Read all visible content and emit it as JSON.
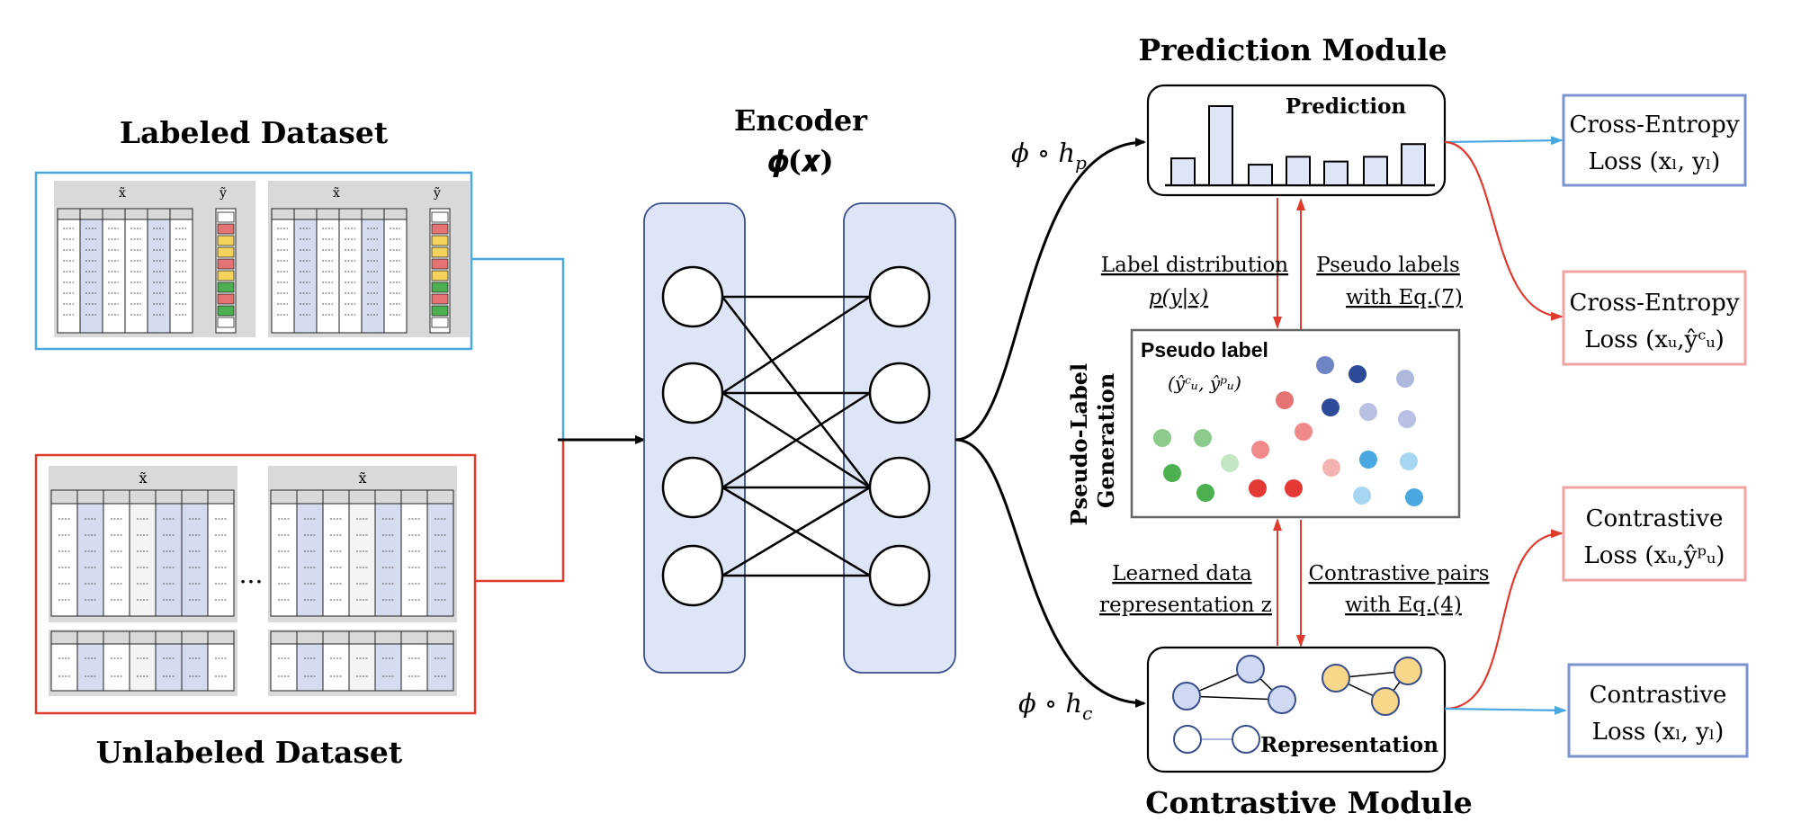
{
  "labeled": {
    "title": "Labeled Dataset",
    "x_label": "x̃",
    "y_label": "ỹ",
    "border_color": "#4AA8E0"
  },
  "unlabeled": {
    "title": "Unlabeled Dataset",
    "x_label": "x̃",
    "ellipsis": "...",
    "border_color": "#E03A2E"
  },
  "encoder": {
    "title": "Encoder",
    "formula": "𝝓(𝒙)"
  },
  "prediction": {
    "module_title": "Prediction Module",
    "box_label": "Prediction",
    "head_label": "ϕ ∘ h",
    "head_sub": "p",
    "bars": [
      0.34,
      1.0,
      0.26,
      0.36,
      0.3,
      0.36,
      0.52
    ]
  },
  "contrastive": {
    "module_title": "Contrastive Module",
    "box_label": "Representation",
    "head_label": "ϕ ∘ h",
    "head_sub": "c"
  },
  "pseudo": {
    "side_label_1": "Pseudo-Label",
    "side_label_2": "Generation",
    "box_title": "Pseudo label",
    "box_formula": "(ŷᶜᵤ, ŷᵖᵤ)"
  },
  "arrows": {
    "label_distribution": "Label distribution",
    "label_distribution_formula": "p(y|x)",
    "pseudo_labels": "Pseudo labels",
    "pseudo_labels_eq": "with Eq.(7)",
    "learned_data": "Learned data",
    "learned_data_2": "representation z",
    "contrastive_pairs": "Contrastive pairs",
    "contrastive_pairs_eq": "with Eq.(4)"
  },
  "losses": {
    "ce_labeled_1": "Cross-Entropy",
    "ce_labeled_2": "Loss (xₗ, yₗ)",
    "ce_unlabeled_1": "Cross-Entropy",
    "ce_unlabeled_2": "Loss (xᵤ,ŷᶜᵤ)",
    "con_unlabeled_1": "Contrastive",
    "con_unlabeled_2": "Loss (xᵤ,ŷᵖᵤ)",
    "con_labeled_1": "Contrastive",
    "con_labeled_2": "Loss (xₗ, yₗ)"
  },
  "colors": {
    "blue_line": "#4AA8E0",
    "red_line": "#E03A2E",
    "blue_box": "#7B93CF",
    "red_box": "#F2A3A3",
    "encoder_fill": "#DDE5F6",
    "encoder_stroke": "#3B4E8C"
  }
}
